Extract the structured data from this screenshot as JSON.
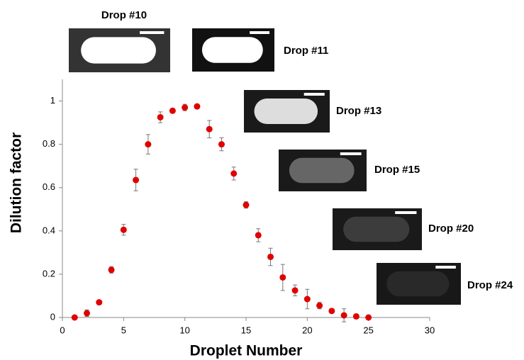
{
  "chart_data": {
    "type": "scatter",
    "x_label": "Droplet Number",
    "y_label": "Dilution factor",
    "x": [
      1,
      2,
      3,
      4,
      5,
      6,
      7,
      8,
      9,
      10,
      11,
      12,
      13,
      14,
      15,
      16,
      17,
      18,
      19,
      20,
      21,
      22,
      23,
      24,
      25
    ],
    "series": [
      {
        "name": "Dilution factor",
        "color": "#e00000",
        "values": [
          0,
          0.02,
          0.07,
          0.22,
          0.405,
          0.635,
          0.8,
          0.925,
          0.955,
          0.97,
          0.975,
          0.87,
          0.8,
          0.665,
          0.52,
          0.38,
          0.28,
          0.185,
          0.125,
          0.085,
          0.055,
          0.03,
          0.01,
          0.005,
          0
        ],
        "errors": [
          0,
          0.015,
          0.008,
          0.015,
          0.025,
          0.05,
          0.045,
          0.025,
          0.01,
          0.015,
          0.005,
          0.04,
          0.03,
          0.03,
          0.015,
          0.03,
          0.04,
          0.06,
          0.025,
          0.045,
          0.015,
          0.005,
          0.03,
          0.005,
          0
        ]
      }
    ],
    "xlim": [
      0,
      30
    ],
    "xticks": [
      0,
      5,
      10,
      15,
      20,
      25,
      30
    ],
    "ylim": [
      0,
      1.1
    ],
    "yticks": [
      0,
      0.2,
      0.4,
      0.6,
      0.8,
      1
    ],
    "grid": false,
    "annotations": [
      "Drop #10",
      "Drop #11",
      "Drop #13",
      "Drop #15",
      "Drop #20",
      "Drop #24"
    ]
  }
}
